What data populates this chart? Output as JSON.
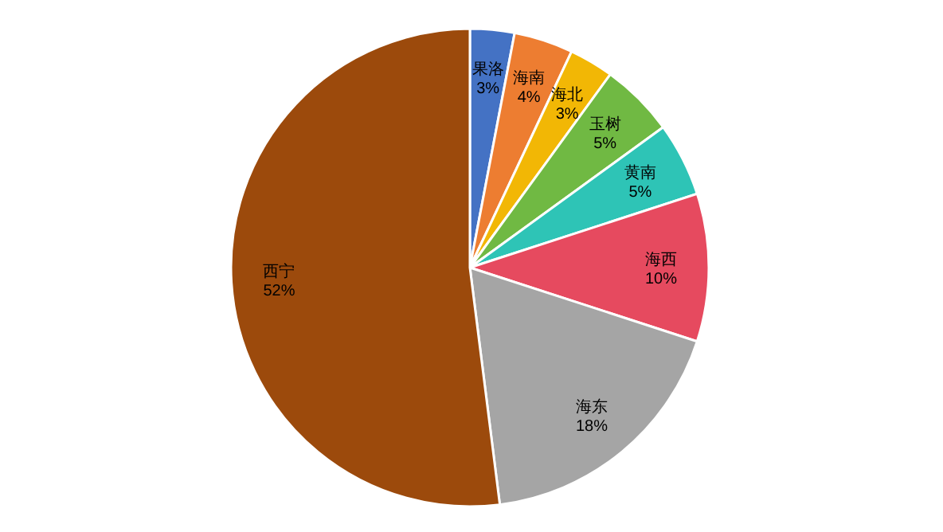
{
  "chart_data": {
    "type": "pie",
    "categories": [
      "果洛",
      "海南",
      "海北",
      "玉树",
      "黄南",
      "海西",
      "海东",
      "西宁"
    ],
    "values": [
      3,
      4,
      3,
      5,
      5,
      10,
      18,
      52
    ],
    "value_labels": [
      "3%",
      "4%",
      "3%",
      "5%",
      "5%",
      "10%",
      "18%",
      "52%"
    ],
    "colors": [
      "#4472c4",
      "#ed7d31",
      "#f2b705",
      "#70b943",
      "#2ec4b6",
      "#e64a5f",
      "#a5a5a5",
      "#9c4a0c"
    ]
  }
}
